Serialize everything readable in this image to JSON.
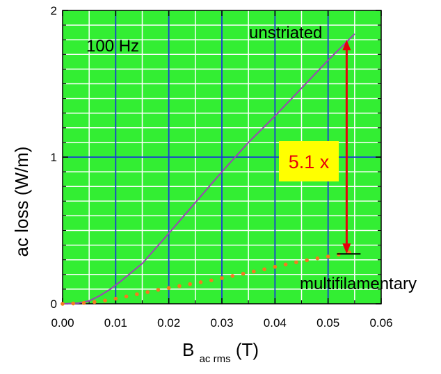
{
  "chart_data": {
    "type": "line",
    "title": "",
    "xlabel": "B",
    "xlabel_sub": "ac rms",
    "xlabel_unit": "(T)",
    "ylabel": "ac loss  (W/m)",
    "xlim": [
      0.0,
      0.06
    ],
    "ylim": [
      0,
      2
    ],
    "x_ticks": [
      "0.00",
      "0.01",
      "0.02",
      "0.03",
      "0.04",
      "0.05",
      "0.06"
    ],
    "y_ticks": [
      "0",
      "1",
      "2"
    ],
    "grid": true,
    "series": [
      {
        "name": "unstriated",
        "style": "line",
        "color": "#9b45b5",
        "x": [
          0.0,
          0.003,
          0.005,
          0.007,
          0.009,
          0.011,
          0.013,
          0.015,
          0.02,
          0.025,
          0.03,
          0.035,
          0.04,
          0.045,
          0.05,
          0.055
        ],
        "y": [
          0.0,
          0.005,
          0.02,
          0.055,
          0.1,
          0.155,
          0.215,
          0.275,
          0.48,
          0.69,
          0.9,
          1.1,
          1.28,
          1.47,
          1.66,
          1.84
        ]
      },
      {
        "name": "multifilamentary",
        "style": "dotted",
        "color": "#f47a20",
        "x": [
          0.0,
          0.002,
          0.004,
          0.006,
          0.008,
          0.01,
          0.012,
          0.014,
          0.016,
          0.018,
          0.02,
          0.022,
          0.024,
          0.026,
          0.028,
          0.03,
          0.032,
          0.034,
          0.036,
          0.038,
          0.04,
          0.042,
          0.044,
          0.046,
          0.048,
          0.05,
          0.052,
          0.054
        ],
        "y": [
          0.0,
          0.002,
          0.006,
          0.012,
          0.022,
          0.035,
          0.05,
          0.065,
          0.08,
          0.095,
          0.108,
          0.121,
          0.134,
          0.147,
          0.16,
          0.175,
          0.19,
          0.205,
          0.22,
          0.235,
          0.252,
          0.268,
          0.283,
          0.297,
          0.31,
          0.322,
          0.336,
          0.35
        ]
      }
    ],
    "annotations": {
      "frequency": "100 Hz",
      "ratio": "5.1 x",
      "ratio_box_color": "#ffff00",
      "ratio_text_color": "#e8000b",
      "arrow_color": "#e8000b",
      "arrow_x": 0.0535,
      "arrow_top_y": 1.8,
      "arrow_bottom_y": 0.34
    },
    "colors": {
      "background": "#33ee33",
      "minor_grid": "#ffffff",
      "major_grid": "#1a3ad6"
    }
  }
}
